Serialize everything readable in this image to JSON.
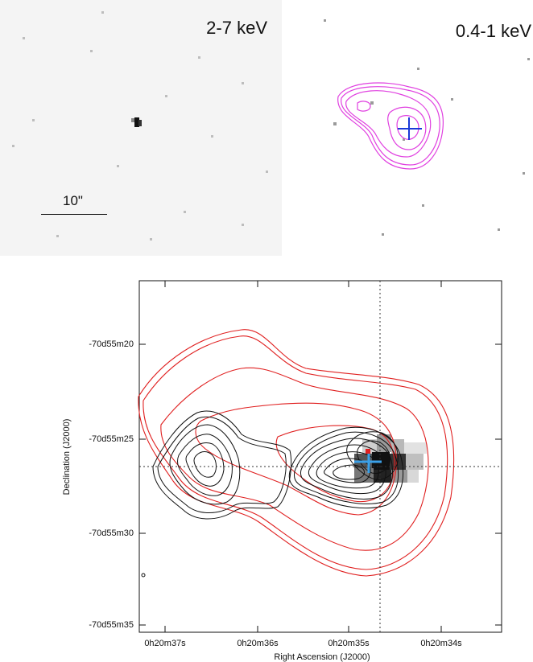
{
  "panels": {
    "hard": {
      "title": "2-7 keV",
      "scale_label": "10\""
    },
    "soft": {
      "title": "0.4-1 keV"
    }
  },
  "main_plot": {
    "xlabel": "Right Ascension (J2000)",
    "ylabel": "Declination (J2000)",
    "xticks": [
      "0h20m37s",
      "0h20m36s",
      "0h20m35s",
      "0h20m34s"
    ],
    "yticks": [
      "-70d55m20",
      "-70d55m25",
      "-70d55m30",
      "-70d55m35"
    ]
  },
  "colors": {
    "magenta_contours": "#e040e0",
    "red_contours": "#e02020",
    "black_contours": "#111111",
    "blue_cross": "#1a3ad8",
    "cyan_cross": "#3aa0e8"
  }
}
